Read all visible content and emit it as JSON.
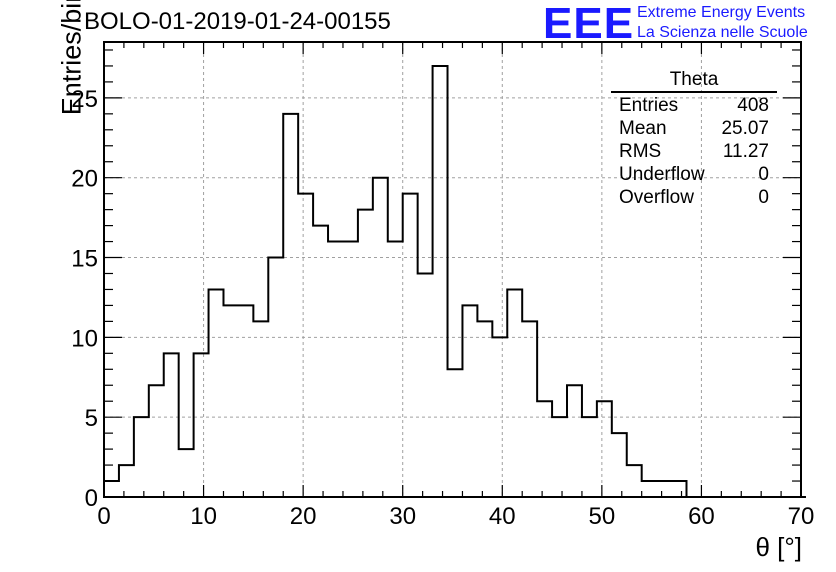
{
  "header": {
    "run_title": "BOLO-01-2019-01-24-00155",
    "logo_mark": "EEE",
    "logo_line1": "Extreme Energy Events",
    "logo_line2": "La Scienza nelle Scuole",
    "logo_color": "#1a1aff"
  },
  "stats": {
    "title": "Theta",
    "rows": [
      {
        "label": "Entries",
        "value": "408"
      },
      {
        "label": "Mean",
        "value": "25.07"
      },
      {
        "label": "RMS",
        "value": "11.27"
      },
      {
        "label": "Underflow",
        "value": "0"
      },
      {
        "label": "Overflow",
        "value": "0"
      }
    ]
  },
  "chart_data": {
    "type": "bar",
    "histogram": true,
    "xlabel": "θ [°]",
    "ylabel": "Entries/bin",
    "xlim": [
      0,
      70
    ],
    "ylim": [
      0,
      28.5
    ],
    "grid": true,
    "bin_width": 1.5,
    "bin_start": 0,
    "xticks": [
      0,
      10,
      20,
      30,
      40,
      50,
      60,
      70
    ],
    "yticks": [
      0,
      5,
      10,
      15,
      20,
      25
    ],
    "values": [
      1,
      2,
      5,
      7,
      9,
      3,
      9,
      13,
      12,
      12,
      11,
      15,
      24,
      19,
      17,
      16,
      16,
      18,
      20,
      16,
      19,
      14,
      27,
      8,
      12,
      11,
      10,
      13,
      11,
      6,
      5,
      7,
      5,
      6,
      4,
      2,
      1,
      1,
      1,
      0,
      0,
      0,
      0,
      0,
      0,
      0,
      0
    ]
  }
}
